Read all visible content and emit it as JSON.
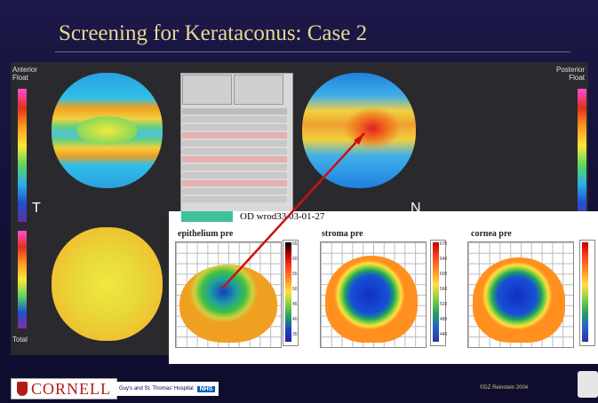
{
  "slide": {
    "title": "Screening for Kerataconus: Case 2"
  },
  "topography": {
    "anterior_label_line1": "Anterior",
    "anterior_label_line2": "Float",
    "posterior_label_line1": "Posterior",
    "posterior_label_line2": "Float",
    "total_label": "Total",
    "temporal_label": "T",
    "nasal_label": "N"
  },
  "overlay": {
    "od_label": "OD wrod33   03-01-27",
    "plots": [
      {
        "label": "epithelium pre",
        "scale": [
          "65",
          "60",
          "55",
          "50",
          "45",
          "40",
          "35"
        ]
      },
      {
        "label": "stroma pre",
        "scale": [
          "670",
          "640",
          "600",
          "560",
          "520",
          "480",
          "440"
        ]
      },
      {
        "label": "cornea pre",
        "scale": [
          "",
          "",
          "",
          "",
          "",
          "",
          ""
        ]
      }
    ]
  },
  "footer": {
    "cornell": "CORNELL",
    "guys": "Guy's and St. Thomas' Hospital",
    "nhs": "NHS",
    "copyright": "©DZ Reinstein 2004"
  }
}
